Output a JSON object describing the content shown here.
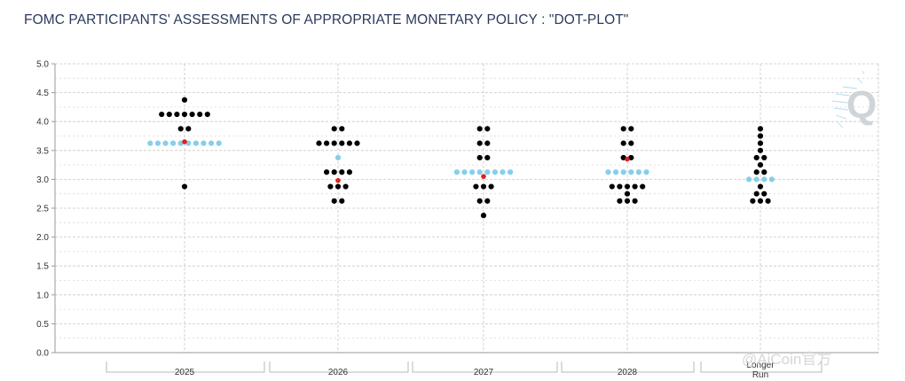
{
  "chart_data": {
    "type": "scatter",
    "title": "FOMC PARTICIPANTS' ASSESSMENTS OF APPROPRIATE MONETARY POLICY : \"DOT-PLOT\"",
    "categories": [
      "2025",
      "2026",
      "2027",
      "2028",
      "Longer Run"
    ],
    "ylim": [
      0,
      5
    ],
    "yticks": [
      "0.0",
      "0.5",
      "1.0",
      "1.5",
      "2.0",
      "2.5",
      "3.0",
      "3.5",
      "4.0",
      "4.5",
      "5.0"
    ],
    "grid": true,
    "colors": {
      "dot": "#000000",
      "median": "#87ceeb",
      "marker": "#e02020",
      "grid": "#c8c8c8"
    },
    "series": [
      {
        "category": "2025",
        "dots": [
          {
            "y": 4.375,
            "count": 1
          },
          {
            "y": 4.125,
            "count": 7
          },
          {
            "y": 3.875,
            "count": 2
          },
          {
            "y": 2.875,
            "count": 1
          }
        ]
      },
      {
        "category": "2026",
        "dots": [
          {
            "y": 3.875,
            "count": 2
          },
          {
            "y": 3.625,
            "count": 6
          },
          {
            "y": 3.125,
            "count": 4
          },
          {
            "y": 2.875,
            "count": 3
          },
          {
            "y": 2.625,
            "count": 2
          }
        ]
      },
      {
        "category": "2027",
        "dots": [
          {
            "y": 3.875,
            "count": 2
          },
          {
            "y": 3.625,
            "count": 2
          },
          {
            "y": 3.375,
            "count": 2
          },
          {
            "y": 2.875,
            "count": 3
          },
          {
            "y": 2.625,
            "count": 2
          },
          {
            "y": 2.375,
            "count": 1
          }
        ]
      },
      {
        "category": "2028",
        "dots": [
          {
            "y": 3.875,
            "count": 2
          },
          {
            "y": 3.625,
            "count": 2
          },
          {
            "y": 3.375,
            "count": 2
          },
          {
            "y": 2.875,
            "count": 5
          },
          {
            "y": 2.75,
            "count": 1
          },
          {
            "y": 2.625,
            "count": 3
          }
        ]
      },
      {
        "category": "Longer Run",
        "dots": [
          {
            "y": 3.875,
            "count": 1
          },
          {
            "y": 3.75,
            "count": 1
          },
          {
            "y": 3.625,
            "count": 1
          },
          {
            "y": 3.5,
            "count": 1
          },
          {
            "y": 3.375,
            "count": 2
          },
          {
            "y": 3.25,
            "count": 1
          },
          {
            "y": 3.125,
            "count": 2
          },
          {
            "y": 2.875,
            "count": 1
          },
          {
            "y": 2.75,
            "count": 2
          },
          {
            "y": 2.625,
            "count": 3
          }
        ]
      }
    ],
    "medians": [
      {
        "category": "2025",
        "y": 3.625,
        "count": 10
      },
      {
        "category": "2026",
        "y": 3.375,
        "count": 1
      },
      {
        "category": "2027",
        "y": 3.125,
        "count": 8
      },
      {
        "category": "2028",
        "y": 3.125,
        "count": 6
      },
      {
        "category": "Longer Run",
        "y": 3.0,
        "count": 4
      }
    ],
    "markers": [
      {
        "category": "2025",
        "y": 3.65
      },
      {
        "category": "2026",
        "y": 2.98
      },
      {
        "category": "2027",
        "y": 3.05
      },
      {
        "category": "2028",
        "y": 3.35
      }
    ]
  },
  "logo_text": "Q",
  "watermark": "@AiCoin官方"
}
